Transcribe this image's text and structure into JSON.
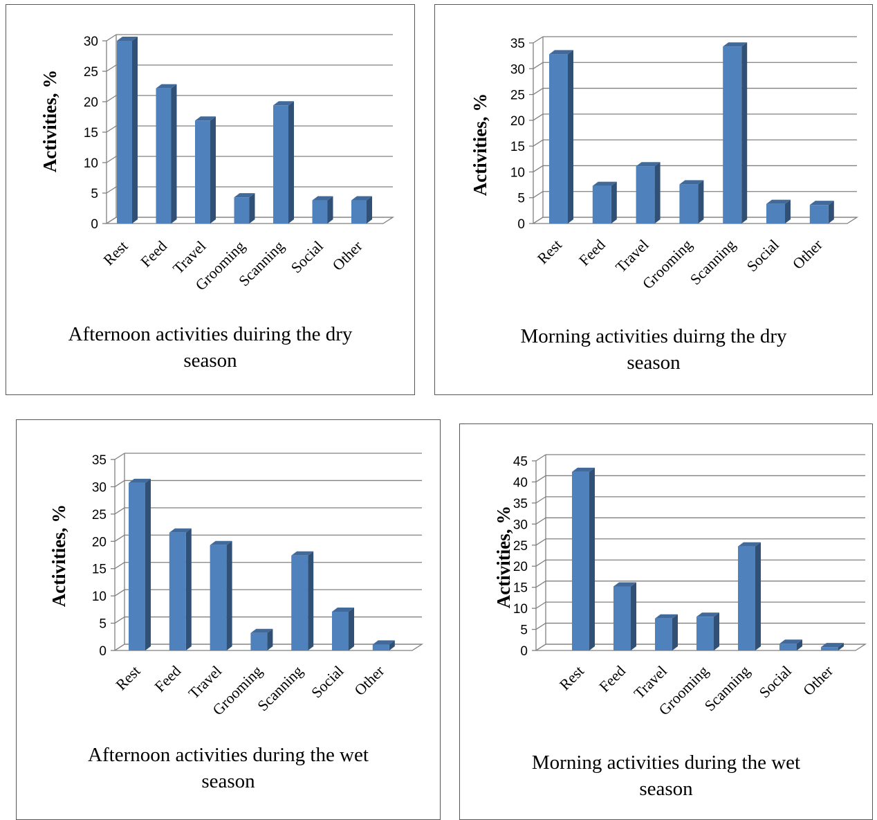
{
  "chart_data": [
    {
      "type": "bar",
      "title_lines": [
        "Afternoon activities duiring the dry",
        "season"
      ],
      "ylabel": "Activities, %",
      "categories": [
        "Rest",
        "Feed",
        "Travel",
        "Grooming",
        "Scanning",
        "Social",
        "Other"
      ],
      "values": [
        30,
        22.2,
        16.9,
        4.3,
        19.4,
        3.8,
        3.8
      ],
      "ylim": [
        0,
        30
      ],
      "yticks": [
        "0",
        "5",
        "10",
        "15",
        "20",
        "25",
        "30"
      ],
      "grid": true,
      "bar_color": "#4f81bd"
    },
    {
      "type": "bar",
      "title_lines": [
        "Morning activities duirng the dry",
        "season"
      ],
      "ylabel": "Activities, %",
      "categories": [
        "Rest",
        "Feed",
        "Travel",
        "Grooming",
        "Scanning",
        "Social",
        "Other"
      ],
      "values": [
        32.8,
        7.3,
        11.1,
        7.6,
        34.3,
        3.8,
        3.6
      ],
      "ylim": [
        0,
        35
      ],
      "yticks": [
        "0",
        "5",
        "10",
        "15",
        "20",
        "25",
        "30",
        "35"
      ],
      "grid": true,
      "bar_color": "#4f81bd"
    },
    {
      "type": "bar",
      "title_lines": [
        "Afternoon activities during the wet",
        "season"
      ],
      "ylabel": "Activities, %",
      "categories": [
        "Rest",
        "Feed",
        "Travel",
        "Grooming",
        "Scanning",
        "Social",
        "Other"
      ],
      "values": [
        30.7,
        21.6,
        19.3,
        3.2,
        17.4,
        7.1,
        1.1
      ],
      "ylim": [
        0,
        35
      ],
      "yticks": [
        "0",
        "5",
        "10",
        "15",
        "20",
        "25",
        "30",
        "35"
      ],
      "grid": true,
      "bar_color": "#4f81bd"
    },
    {
      "type": "bar",
      "title_lines": [
        "Morning activities during the wet",
        "season"
      ],
      "ylabel": "Activities, %",
      "categories": [
        "Rest",
        "Feed",
        "Travel",
        "Grooming",
        "Scanning",
        "Social",
        "Other"
      ],
      "values": [
        42.4,
        15.2,
        7.6,
        8.0,
        24.7,
        1.6,
        0.8
      ],
      "ylim": [
        0,
        45
      ],
      "yticks": [
        "0",
        "5",
        "10",
        "15",
        "20",
        "25",
        "30",
        "35",
        "40",
        "45"
      ],
      "grid": true,
      "bar_color": "#4f81bd"
    }
  ]
}
